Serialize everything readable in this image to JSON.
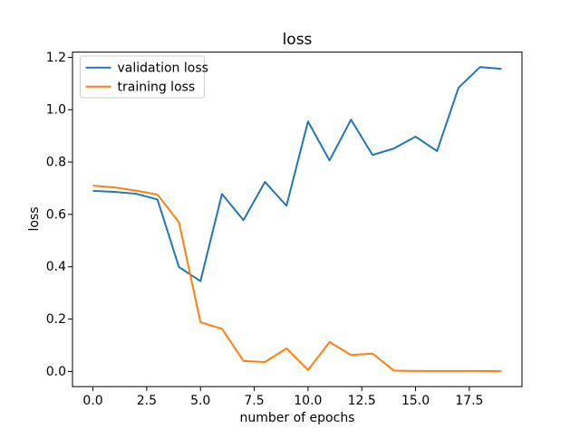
{
  "figure": {
    "title": "loss",
    "xlabel": "number of epochs",
    "ylabel": "loss",
    "background_color": "#ffffff",
    "axes_edge_color": "#000000",
    "text_color": "#000000"
  },
  "legend": {
    "position": "upper left",
    "border_color": "#cccccc",
    "items": [
      {
        "label": "validation loss",
        "color": "#1f77b4"
      },
      {
        "label": "training loss",
        "color": "#ff7f0e"
      }
    ]
  },
  "chart_data": {
    "type": "line",
    "title": "loss",
    "xlabel": "number of epochs",
    "ylabel": "loss",
    "x": [
      0,
      1,
      2,
      3,
      4,
      5,
      6,
      7,
      8,
      9,
      10,
      11,
      12,
      13,
      14,
      15,
      16,
      17,
      18,
      19
    ],
    "series": [
      {
        "name": "validation loss",
        "color": "#1f77b4",
        "values": [
          0.69,
          0.686,
          0.679,
          0.657,
          0.399,
          0.345,
          0.678,
          0.578,
          0.724,
          0.633,
          0.955,
          0.806,
          0.962,
          0.827,
          0.852,
          0.897,
          0.842,
          1.084,
          1.163,
          1.156
        ]
      },
      {
        "name": "training loss",
        "color": "#ff7f0e",
        "values": [
          0.71,
          0.703,
          0.691,
          0.676,
          0.57,
          0.188,
          0.163,
          0.04,
          0.036,
          0.088,
          0.005,
          0.112,
          0.063,
          0.068,
          0.003,
          0.002,
          0.002,
          0.002,
          0.002,
          0.001
        ]
      }
    ],
    "xlim": [
      -0.95,
      19.95
    ],
    "ylim": [
      -0.058,
      1.22
    ],
    "xticks": [
      0.0,
      2.5,
      5.0,
      7.5,
      10.0,
      12.5,
      15.0,
      17.5
    ],
    "yticks": [
      0.0,
      0.2,
      0.4,
      0.6,
      0.8,
      1.0,
      1.2
    ],
    "grid": false,
    "legend_position": "upper left"
  }
}
